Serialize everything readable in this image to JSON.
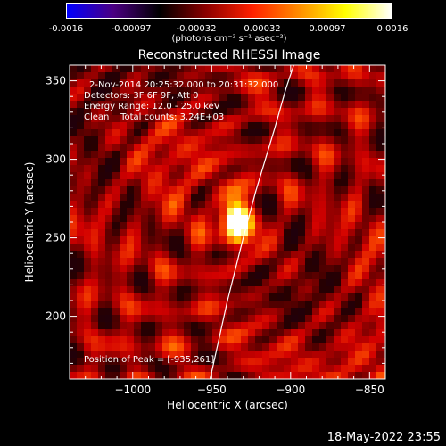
{
  "colorbar": {
    "ticks": [
      "-0.0016",
      "-0.00097",
      "-0.00032",
      "0.00032",
      "0.00097",
      "0.0016"
    ],
    "units": "(photons cm⁻² s⁻¹ asec⁻²)",
    "colors": [
      "#0000ff",
      "#4b0082",
      "#000000",
      "#8b0000",
      "#ff2000",
      "#ff8c00",
      "#ffff00",
      "#ffffff"
    ]
  },
  "title": "Reconstructed RHESSI Image",
  "annotations": {
    "time_range": "2-Nov-2014 20:25:32.000 to 20:31:32.000",
    "detectors": "Detectors: 3F 6F 9F, Att 0",
    "energy_range": "Energy Range: 12.0 - 25.0 keV",
    "method_counts": "Clean    Total counts: 3.24E+03",
    "peak_position": "Position of Peak = [-935,261]"
  },
  "footer_date": "18-May-2022 23:55",
  "chart_data": {
    "type": "heatmap",
    "title": "Reconstructed RHESSI Image",
    "xlabel": "Heliocentric X (arcsec)",
    "ylabel": "Heliocentric Y (arcsec)",
    "xlim": [
      -1040,
      -840
    ],
    "ylim": [
      160,
      360
    ],
    "x_ticks": [
      -1000,
      -950,
      -900,
      -850
    ],
    "x_tick_labels": [
      "−1000",
      "−950",
      "−900",
      "−850"
    ],
    "y_ticks": [
      200,
      250,
      300,
      350
    ],
    "y_tick_labels": [
      "200",
      "250",
      "300",
      "350"
    ],
    "peak": {
      "x": -935,
      "y": 261
    },
    "limb_curve": [
      [
        -951,
        160
      ],
      [
        -940,
        210
      ],
      [
        -930,
        250
      ],
      [
        -922,
        280
      ],
      [
        -910,
        320
      ],
      [
        -903,
        345
      ],
      [
        -898,
        360
      ]
    ],
    "colorbar_range": [
      -0.0016,
      0.0016
    ]
  }
}
